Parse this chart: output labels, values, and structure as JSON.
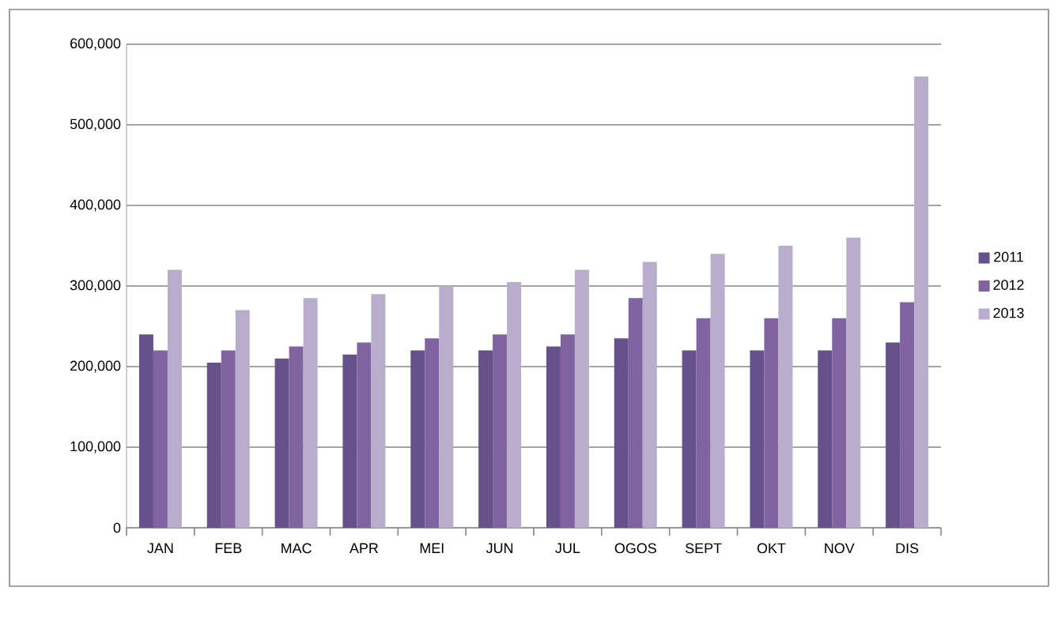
{
  "chart_data": {
    "type": "bar",
    "categories": [
      "JAN",
      "FEB",
      "MAC",
      "APR",
      "MEI",
      "JUN",
      "JUL",
      "OGOS",
      "SEPT",
      "OKT",
      "NOV",
      "DIS"
    ],
    "series": [
      {
        "name": "2011",
        "color": "#67518a",
        "values": [
          240000,
          205000,
          210000,
          215000,
          220000,
          220000,
          225000,
          235000,
          220000,
          220000,
          220000,
          230000
        ]
      },
      {
        "name": "2012",
        "color": "#8064a2",
        "values": [
          220000,
          220000,
          225000,
          230000,
          235000,
          240000,
          240000,
          285000,
          260000,
          260000,
          260000,
          280000
        ]
      },
      {
        "name": "2013",
        "color": "#b8aecb",
        "values": [
          320000,
          270000,
          285000,
          290000,
          300000,
          305000,
          320000,
          330000,
          340000,
          350000,
          360000,
          560000
        ]
      }
    ],
    "ylim": [
      0,
      600000
    ],
    "yticks": [
      0,
      {
        "value": 100000,
        "label": "100,000"
      },
      {
        "value": 200000,
        "label": "200,000"
      },
      {
        "value": 300000,
        "label": "300,000"
      },
      {
        "value": 400000,
        "label": "400,000"
      },
      {
        "value": 500000,
        "label": "500,000"
      },
      {
        "value": 600000,
        "label": "600,000"
      }
    ],
    "grid": "y",
    "legend": "right"
  }
}
